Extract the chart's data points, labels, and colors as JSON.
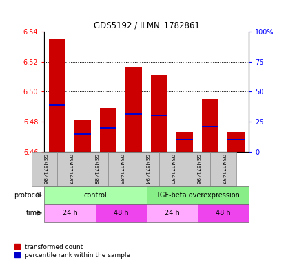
{
  "title": "GDS5192 / ILMN_1782861",
  "samples": [
    "GSM671486",
    "GSM671487",
    "GSM671488",
    "GSM671489",
    "GSM671494",
    "GSM671495",
    "GSM671496",
    "GSM671497"
  ],
  "bar_tops": [
    6.535,
    6.481,
    6.489,
    6.516,
    6.511,
    6.473,
    6.495,
    6.473
  ],
  "blue_positions": [
    6.491,
    6.472,
    6.476,
    6.485,
    6.484,
    6.468,
    6.477,
    6.468
  ],
  "ymin": 6.46,
  "ymax": 6.54,
  "yticks_left": [
    6.46,
    6.48,
    6.5,
    6.52,
    6.54
  ],
  "yticks_right": [
    0,
    25,
    50,
    75,
    100
  ],
  "ytick_labels_right": [
    "0",
    "25",
    "50",
    "75",
    "100%"
  ],
  "bar_color": "#cc0000",
  "blue_color": "#0000cc",
  "protocol_colors": [
    "#aaffaa",
    "#88ee88"
  ],
  "time_colors": [
    "#ffaaff",
    "#ee44ee",
    "#ffaaff",
    "#ee44ee"
  ],
  "sample_box_color": "#cccccc",
  "protocol_row": [
    {
      "label": "control",
      "span": [
        0,
        4
      ]
    },
    {
      "label": "TGF-beta overexpression",
      "span": [
        4,
        8
      ]
    }
  ],
  "time_row": [
    {
      "label": "24 h",
      "span": [
        0,
        2
      ]
    },
    {
      "label": "48 h",
      "span": [
        2,
        4
      ]
    },
    {
      "label": "24 h",
      "span": [
        4,
        6
      ]
    },
    {
      "label": "48 h",
      "span": [
        6,
        8
      ]
    }
  ]
}
